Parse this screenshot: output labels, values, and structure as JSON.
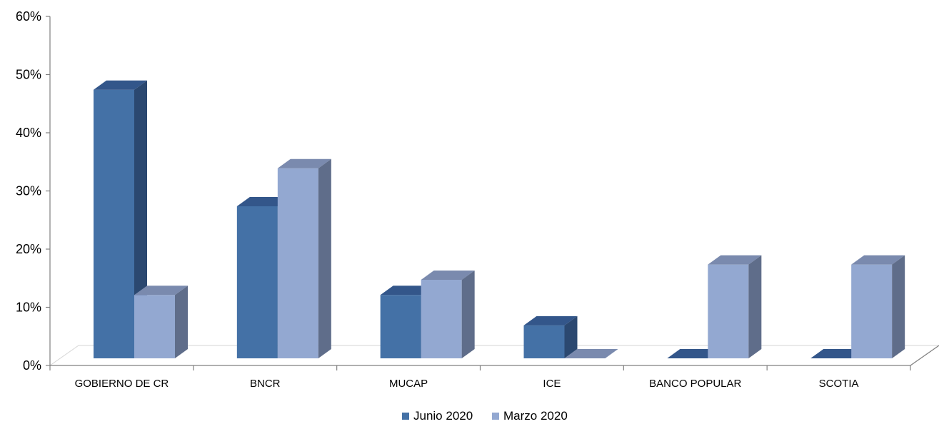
{
  "chart_data": {
    "type": "bar",
    "categories": [
      "GOBIERNO DE CR",
      "BNCR",
      "MUCAP",
      "ICE",
      "BANCO POPULAR",
      "SCOTIA"
    ],
    "series": [
      {
        "name": "Junio 2020",
        "values": [
          53,
          30,
          12.5,
          6.5,
          0,
          0
        ],
        "color": "#4471A6",
        "top_color": "#33568A",
        "side_color": "#2B4870"
      },
      {
        "name": "Marzo 2020",
        "values": [
          12.5,
          37.5,
          15.5,
          0,
          18.5,
          18.5
        ],
        "color": "#93A8D1",
        "top_color": "#7A8AAE",
        "side_color": "#5F6D8A"
      }
    ],
    "ylim": [
      0,
      60
    ],
    "yticks": [
      0,
      10,
      20,
      30,
      40,
      50,
      60
    ],
    "ytick_labels": [
      "0%",
      "10%",
      "20%",
      "30%",
      "40%",
      "50%",
      "60%"
    ],
    "legend_position": "bottom",
    "grid": false,
    "style": "3d-clustered-column"
  }
}
